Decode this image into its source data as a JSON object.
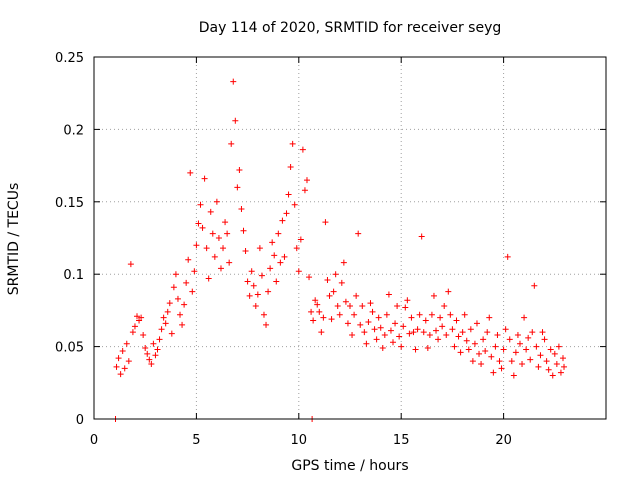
{
  "chart_data": {
    "type": "scatter",
    "title": "Day 114 of 2020, SRMTID for receiver seyg",
    "xlabel": "GPS time / hours",
    "ylabel": "SRMTID / TECUs",
    "xlim": [
      0,
      25
    ],
    "ylim": [
      0,
      0.25
    ],
    "x_ticks": [
      0,
      5,
      10,
      15,
      20
    ],
    "x_tick_labels": [
      "0",
      "5",
      "10",
      "15",
      "20"
    ],
    "y_ticks": [
      0,
      0.05,
      0.1,
      0.15,
      0.2,
      0.25
    ],
    "y_tick_labels": [
      "0",
      "0.05",
      "0.1",
      "0.15",
      "0.2",
      "0.25"
    ],
    "grid": true,
    "marker": "+",
    "color": "#ff0000",
    "series": [
      {
        "name": "SRMTID",
        "points": [
          [
            1.1,
            0.036
          ],
          [
            1.2,
            0.042
          ],
          [
            1.3,
            0.031
          ],
          [
            1.4,
            0.047
          ],
          [
            1.5,
            0.035
          ],
          [
            1.6,
            0.052
          ],
          [
            1.7,
            0.04
          ],
          [
            1.8,
            0.107
          ],
          [
            1.9,
            0.06
          ],
          [
            2.0,
            0.064
          ],
          [
            2.1,
            0.071
          ],
          [
            2.2,
            0.068
          ],
          [
            2.3,
            0.07
          ],
          [
            2.4,
            0.058
          ],
          [
            2.5,
            0.049
          ],
          [
            2.6,
            0.045
          ],
          [
            2.7,
            0.041
          ],
          [
            2.8,
            0.038
          ],
          [
            2.9,
            0.052
          ],
          [
            3.0,
            0.044
          ],
          [
            3.1,
            0.048
          ],
          [
            3.2,
            0.055
          ],
          [
            3.3,
            0.062
          ],
          [
            3.4,
            0.07
          ],
          [
            3.5,
            0.066
          ],
          [
            3.6,
            0.074
          ],
          [
            3.7,
            0.08
          ],
          [
            3.8,
            0.059
          ],
          [
            3.9,
            0.091
          ],
          [
            4.0,
            0.1
          ],
          [
            4.1,
            0.083
          ],
          [
            4.2,
            0.072
          ],
          [
            4.3,
            0.065
          ],
          [
            4.4,
            0.079
          ],
          [
            4.5,
            0.094
          ],
          [
            4.6,
            0.11
          ],
          [
            4.7,
            0.17
          ],
          [
            4.8,
            0.088
          ],
          [
            4.9,
            0.102
          ],
          [
            5.0,
            0.12
          ],
          [
            5.1,
            0.135
          ],
          [
            5.2,
            0.148
          ],
          [
            5.3,
            0.132
          ],
          [
            5.4,
            0.166
          ],
          [
            5.5,
            0.118
          ],
          [
            5.6,
            0.097
          ],
          [
            5.7,
            0.143
          ],
          [
            5.8,
            0.128
          ],
          [
            5.9,
            0.112
          ],
          [
            6.0,
            0.15
          ],
          [
            6.1,
            0.125
          ],
          [
            6.2,
            0.104
          ],
          [
            6.3,
            0.118
          ],
          [
            6.4,
            0.136
          ],
          [
            6.5,
            0.128
          ],
          [
            6.6,
            0.108
          ],
          [
            6.7,
            0.19
          ],
          [
            6.8,
            0.233
          ],
          [
            6.9,
            0.206
          ],
          [
            7.0,
            0.16
          ],
          [
            7.1,
            0.172
          ],
          [
            7.2,
            0.145
          ],
          [
            7.3,
            0.13
          ],
          [
            7.4,
            0.116
          ],
          [
            7.5,
            0.095
          ],
          [
            7.6,
            0.085
          ],
          [
            7.7,
            0.102
          ],
          [
            7.8,
            0.092
          ],
          [
            7.9,
            0.078
          ],
          [
            8.0,
            0.086
          ],
          [
            8.1,
            0.118
          ],
          [
            8.2,
            0.099
          ],
          [
            8.3,
            0.072
          ],
          [
            8.4,
            0.065
          ],
          [
            8.5,
            0.088
          ],
          [
            8.6,
            0.104
          ],
          [
            8.7,
            0.122
          ],
          [
            8.8,
            0.113
          ],
          [
            8.9,
            0.095
          ],
          [
            9.0,
            0.128
          ],
          [
            9.1,
            0.108
          ],
          [
            9.2,
            0.137
          ],
          [
            9.3,
            0.112
          ],
          [
            9.4,
            0.142
          ],
          [
            9.5,
            0.155
          ],
          [
            9.6,
            0.174
          ],
          [
            9.7,
            0.19
          ],
          [
            9.8,
            0.148
          ],
          [
            9.9,
            0.118
          ],
          [
            10.0,
            0.102
          ],
          [
            10.1,
            0.124
          ],
          [
            10.2,
            0.186
          ],
          [
            10.3,
            0.158
          ],
          [
            10.4,
            0.165
          ],
          [
            10.5,
            0.098
          ],
          [
            10.6,
            0.074
          ],
          [
            10.7,
            0.068
          ],
          [
            10.8,
            0.082
          ],
          [
            10.9,
            0.079
          ],
          [
            11.0,
            0.074
          ],
          [
            11.1,
            0.06
          ],
          [
            11.2,
            0.07
          ],
          [
            11.3,
            0.136
          ],
          [
            11.4,
            0.096
          ],
          [
            11.5,
            0.085
          ],
          [
            11.6,
            0.069
          ],
          [
            11.7,
            0.088
          ],
          [
            11.8,
            0.1
          ],
          [
            11.9,
            0.078
          ],
          [
            12.0,
            0.072
          ],
          [
            12.1,
            0.094
          ],
          [
            12.2,
            0.108
          ],
          [
            12.3,
            0.081
          ],
          [
            12.4,
            0.066
          ],
          [
            12.5,
            0.078
          ],
          [
            12.6,
            0.058
          ],
          [
            12.7,
            0.072
          ],
          [
            12.8,
            0.085
          ],
          [
            12.9,
            0.128
          ],
          [
            13.0,
            0.065
          ],
          [
            13.1,
            0.078
          ],
          [
            13.2,
            0.06
          ],
          [
            13.3,
            0.052
          ],
          [
            13.4,
            0.067
          ],
          [
            13.5,
            0.08
          ],
          [
            13.6,
            0.074
          ],
          [
            13.7,
            0.062
          ],
          [
            13.8,
            0.055
          ],
          [
            13.9,
            0.07
          ],
          [
            14.0,
            0.063
          ],
          [
            14.1,
            0.049
          ],
          [
            14.2,
            0.058
          ],
          [
            14.3,
            0.072
          ],
          [
            14.4,
            0.086
          ],
          [
            14.5,
            0.061
          ],
          [
            14.6,
            0.053
          ],
          [
            14.7,
            0.066
          ],
          [
            14.8,
            0.078
          ],
          [
            14.9,
            0.057
          ],
          [
            15.0,
            0.05
          ],
          [
            15.1,
            0.064
          ],
          [
            15.2,
            0.077
          ],
          [
            15.3,
            0.082
          ],
          [
            15.4,
            0.059
          ],
          [
            15.5,
            0.07
          ],
          [
            15.6,
            0.06
          ],
          [
            15.7,
            0.048
          ],
          [
            15.8,
            0.062
          ],
          [
            15.9,
            0.072
          ],
          [
            16.0,
            0.126
          ],
          [
            16.1,
            0.06
          ],
          [
            16.2,
            0.068
          ],
          [
            16.3,
            0.049
          ],
          [
            16.4,
            0.058
          ],
          [
            16.5,
            0.072
          ],
          [
            16.6,
            0.085
          ],
          [
            16.7,
            0.061
          ],
          [
            16.8,
            0.055
          ],
          [
            16.9,
            0.07
          ],
          [
            17.0,
            0.064
          ],
          [
            17.1,
            0.078
          ],
          [
            17.2,
            0.058
          ],
          [
            17.3,
            0.088
          ],
          [
            17.4,
            0.072
          ],
          [
            17.5,
            0.062
          ],
          [
            17.6,
            0.05
          ],
          [
            17.7,
            0.068
          ],
          [
            17.8,
            0.057
          ],
          [
            17.9,
            0.046
          ],
          [
            18.0,
            0.06
          ],
          [
            18.1,
            0.072
          ],
          [
            18.2,
            0.054
          ],
          [
            18.3,
            0.048
          ],
          [
            18.4,
            0.062
          ],
          [
            18.5,
            0.04
          ],
          [
            18.6,
            0.052
          ],
          [
            18.7,
            0.066
          ],
          [
            18.8,
            0.045
          ],
          [
            18.9,
            0.038
          ],
          [
            19.0,
            0.055
          ],
          [
            19.1,
            0.047
          ],
          [
            19.2,
            0.06
          ],
          [
            19.3,
            0.07
          ],
          [
            19.4,
            0.043
          ],
          [
            19.5,
            0.032
          ],
          [
            19.6,
            0.05
          ],
          [
            19.7,
            0.058
          ],
          [
            19.8,
            0.04
          ],
          [
            19.9,
            0.035
          ],
          [
            20.0,
            0.048
          ],
          [
            20.1,
            0.062
          ],
          [
            20.2,
            0.112
          ],
          [
            20.3,
            0.055
          ],
          [
            20.4,
            0.04
          ],
          [
            20.5,
            0.03
          ],
          [
            20.6,
            0.046
          ],
          [
            20.7,
            0.058
          ],
          [
            20.8,
            0.052
          ],
          [
            20.9,
            0.038
          ],
          [
            21.0,
            0.07
          ],
          [
            21.1,
            0.048
          ],
          [
            21.2,
            0.056
          ],
          [
            21.3,
            0.041
          ],
          [
            21.4,
            0.06
          ],
          [
            21.5,
            0.092
          ],
          [
            21.6,
            0.05
          ],
          [
            21.7,
            0.036
          ],
          [
            21.8,
            0.044
          ],
          [
            21.9,
            0.06
          ],
          [
            22.0,
            0.055
          ],
          [
            22.1,
            0.04
          ],
          [
            22.2,
            0.034
          ],
          [
            22.3,
            0.048
          ],
          [
            22.4,
            0.03
          ],
          [
            22.5,
            0.045
          ],
          [
            22.6,
            0.038
          ],
          [
            22.7,
            0.05
          ],
          [
            22.8,
            0.032
          ],
          [
            22.9,
            0.042
          ],
          [
            22.95,
            0.036
          ],
          [
            1.05,
            0.0
          ],
          [
            10.65,
            0.0
          ]
        ]
      }
    ]
  }
}
